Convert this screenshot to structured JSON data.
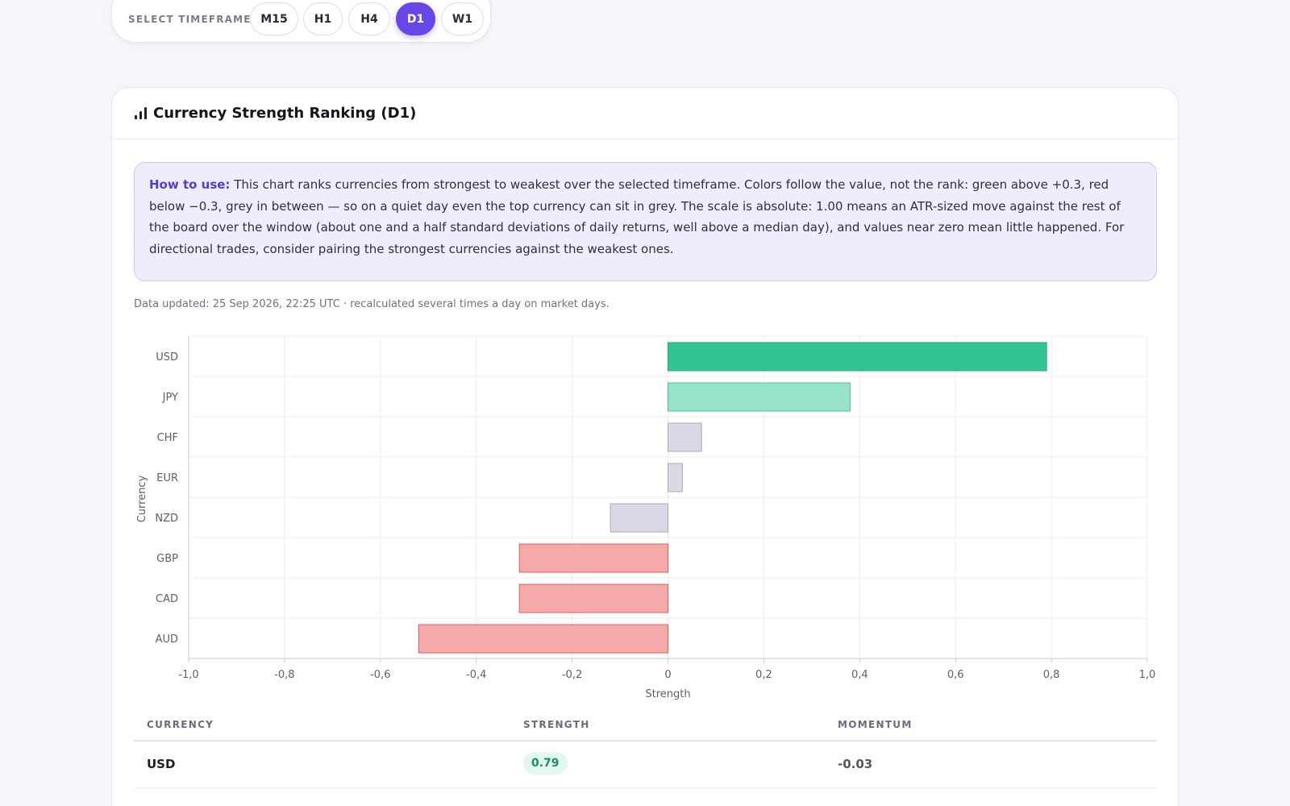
{
  "timeframe": {
    "label": "SELECT TIMEFRAME:",
    "options": [
      "M15",
      "H1",
      "H4",
      "D1",
      "W1"
    ],
    "selected": "D1"
  },
  "card": {
    "title": "Currency Strength Ranking (D1)"
  },
  "howto": {
    "lead": "How to use:",
    "text": "This chart ranks currencies from strongest to weakest over the selected timeframe. Colors follow the value, not the rank: green above +0.3, red below −0.3, grey in between — so on a quiet day even the top currency can sit in grey. The scale is absolute: 1.00 means an ATR-sized move against the rest of the board over the window (about one and a half standard deviations of daily returns, well above a median day), and values near zero mean little happened. For directional trades, consider pairing the strongest currencies against the weakest ones."
  },
  "updated": "Data updated: 25 Sep 2026, 22:25 UTC · recalculated several times a day on market days.",
  "colors": {
    "accent": "#6846e8",
    "strong_green": "#34c491",
    "light_green": "#97e3c9",
    "grey": "#d9d8e4",
    "red": "#f5aaaa"
  },
  "chart_data": {
    "type": "bar",
    "orientation": "horizontal",
    "categories": [
      "USD",
      "JPY",
      "CHF",
      "EUR",
      "NZD",
      "GBP",
      "CAD",
      "AUD"
    ],
    "values": [
      0.79,
      0.38,
      0.07,
      0.03,
      -0.12,
      -0.31,
      -0.31,
      -0.52
    ],
    "xlabel": "Strength",
    "ylabel": "Currency",
    "xlim": [
      -1.0,
      1.0
    ],
    "xticks": [
      "-1,0",
      "-0,8",
      "-0,6",
      "-0,4",
      "-0,2",
      "0",
      "0,2",
      "0,4",
      "0,6",
      "0,8",
      "1,0"
    ],
    "grid": true
  },
  "table": {
    "headers": [
      "CURRENCY",
      "STRENGTH",
      "MOMENTUM"
    ],
    "rows": [
      {
        "currency": "USD",
        "strength": "0.79",
        "momentum": "-0.03"
      }
    ]
  }
}
